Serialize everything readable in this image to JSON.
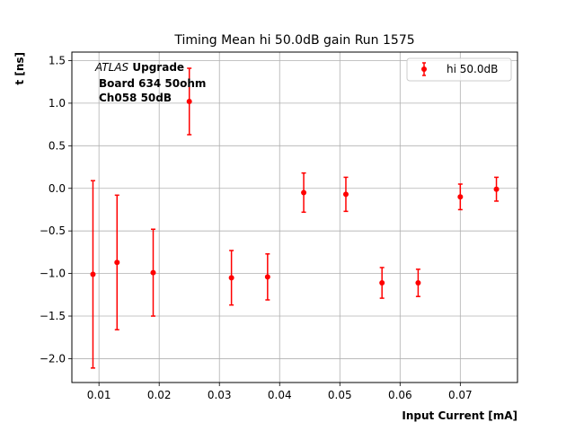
{
  "chart_data": {
    "type": "scatter",
    "title": "Timing Mean hi 50.0dB gain Run 1575",
    "xlabel": "Input Current [mA]",
    "ylabel": "t [ns]",
    "xlim": [
      0.0055,
      0.0795
    ],
    "ylim": [
      -2.28,
      1.6
    ],
    "xticks": [
      0.01,
      0.02,
      0.03,
      0.04,
      0.05,
      0.06,
      0.07
    ],
    "xtick_labels": [
      "0.01",
      "0.02",
      "0.03",
      "0.04",
      "0.05",
      "0.06",
      "0.07"
    ],
    "yticks": [
      -2.0,
      -1.5,
      -1.0,
      -0.5,
      0.0,
      0.5,
      1.0,
      1.5
    ],
    "ytick_labels": [
      "−2.0",
      "−1.5",
      "−1.0",
      "−0.5",
      "0.0",
      "0.5",
      "1.0",
      "1.5"
    ],
    "grid": true,
    "legend_position": "top-right",
    "series": [
      {
        "name": "hi 50.0dB",
        "color": "#ff0000",
        "x": [
          0.009,
          0.013,
          0.019,
          0.025,
          0.032,
          0.038,
          0.044,
          0.051,
          0.057,
          0.063,
          0.07,
          0.076
        ],
        "y": [
          -1.01,
          -0.87,
          -0.99,
          1.02,
          -1.05,
          -1.04,
          -0.05,
          -0.07,
          -1.11,
          -1.11,
          -0.1,
          -0.01
        ],
        "yerr": [
          1.1,
          0.79,
          0.51,
          0.39,
          0.32,
          0.27,
          0.23,
          0.2,
          0.18,
          0.16,
          0.15,
          0.14
        ]
      }
    ],
    "annotation": {
      "atlas": "ATLAS",
      "upgrade": "Upgrade",
      "line2": "Board 634 50ohm",
      "line3": "Ch058 50dB"
    }
  }
}
